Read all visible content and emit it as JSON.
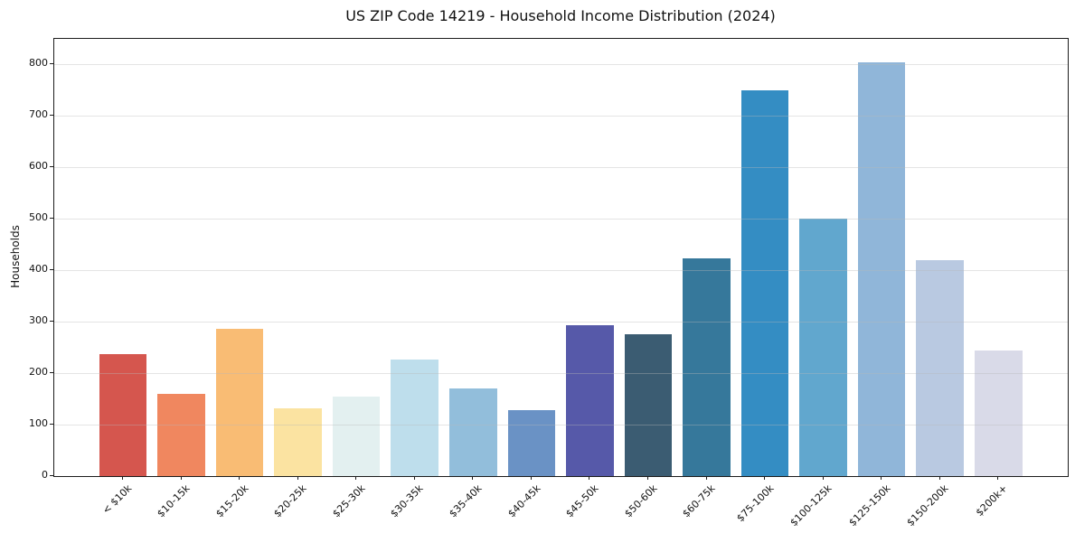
{
  "chart_data": {
    "type": "bar",
    "title": "US ZIP Code 14219 - Household Income Distribution (2024)",
    "xlabel": "",
    "ylabel": "Households",
    "categories": [
      "< $10k",
      "$10-15k",
      "$15-20k",
      "$20-25k",
      "$25-30k",
      "$30-35k",
      "$35-40k",
      "$40-45k",
      "$45-50k",
      "$50-60k",
      "$60-75k",
      "$75-100k",
      "$100-125k",
      "$125-150k",
      "$150-200k",
      "$200k+"
    ],
    "values": [
      237,
      160,
      287,
      132,
      155,
      226,
      170,
      129,
      293,
      275,
      424,
      750,
      500,
      805,
      419,
      245
    ],
    "bar_colors": [
      "#d5564e",
      "#f0875f",
      "#f9bc74",
      "#fbe3a1",
      "#e3f0f0",
      "#bedeec",
      "#92bedb",
      "#6a92c5",
      "#5659a9",
      "#3b5c72",
      "#36789b",
      "#348dc3",
      "#61a7ce",
      "#90b6d9",
      "#b9c9e1",
      "#d9dae8"
    ],
    "yticks": [
      0,
      100,
      200,
      300,
      400,
      500,
      600,
      700,
      800
    ],
    "ylim": [
      0,
      850
    ],
    "grid": "horizontal",
    "legend": "none",
    "axis_color": "#1c1c1c",
    "grid_color": "#e8e8e8"
  }
}
